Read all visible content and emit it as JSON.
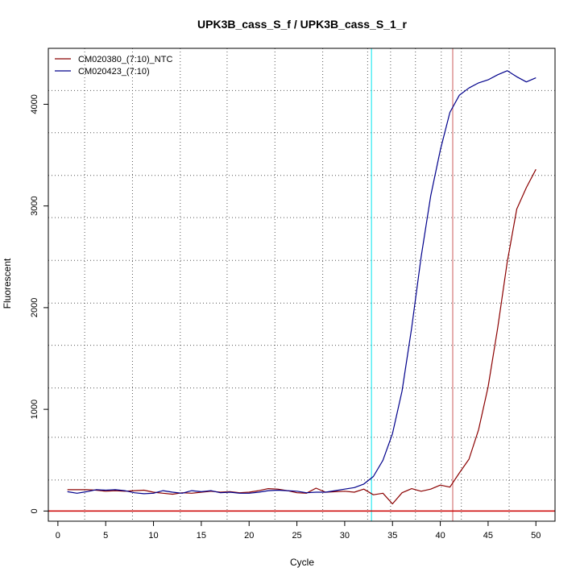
{
  "chart_data": {
    "type": "line",
    "title": "UPK3B_cass_S_f / UPK3B_cass_S_1_r",
    "xlabel": "Cycle",
    "ylabel": "Fluorescent",
    "xlim": [
      -1,
      52
    ],
    "ylim": [
      -100,
      4550
    ],
    "x_ticks": [
      0,
      5,
      10,
      15,
      20,
      25,
      30,
      35,
      40,
      45,
      50
    ],
    "y_ticks": [
      0,
      1000,
      2000,
      3000,
      4000
    ],
    "grid": true,
    "grid_style": "dotted",
    "x_grid": [
      2.8,
      7.8,
      12.8,
      17.7,
      22.7,
      27.7,
      32.4,
      34.8,
      37.4,
      40.1,
      42.2,
      47.2
    ],
    "y_grid": [
      -100,
      305,
      725,
      1210,
      1630,
      2045,
      2465,
      2885,
      3300,
      3720,
      4135,
      4550
    ],
    "threshold_y": 0,
    "threshold_color": "#cc0000",
    "cycle_markers": [
      {
        "x": 32.8,
        "color": "#00e5ee"
      },
      {
        "x": 41.3,
        "color": "#cd5c5c"
      }
    ],
    "legend_position": "top-left",
    "series": [
      {
        "name": "CM020380_(7:10)_NTC",
        "color": "#8b0000",
        "x": [
          1,
          2,
          3,
          4,
          5,
          6,
          7,
          8,
          9,
          10,
          11,
          12,
          13,
          14,
          15,
          16,
          17,
          18,
          19,
          20,
          21,
          22,
          23,
          24,
          25,
          26,
          27,
          28,
          29,
          30,
          31,
          32,
          33,
          34,
          35,
          36,
          37,
          38,
          39,
          40,
          41,
          42,
          43,
          44,
          45,
          46,
          47,
          48,
          49,
          50
        ],
        "y": [
          210,
          210,
          210,
          205,
          195,
          200,
          195,
          200,
          205,
          185,
          175,
          165,
          180,
          175,
          185,
          195,
          185,
          190,
          180,
          185,
          200,
          220,
          215,
          200,
          180,
          175,
          225,
          185,
          190,
          195,
          185,
          215,
          160,
          175,
          70,
          180,
          220,
          195,
          215,
          255,
          235,
          375,
          510,
          800,
          1220,
          1800,
          2450,
          2970,
          3180,
          3360
        ]
      },
      {
        "name": "CM020423_(7:10)",
        "color": "#00008b",
        "x": [
          1,
          2,
          3,
          4,
          5,
          6,
          7,
          8,
          9,
          10,
          11,
          12,
          13,
          14,
          15,
          16,
          17,
          18,
          19,
          20,
          21,
          22,
          23,
          24,
          25,
          26,
          27,
          28,
          29,
          30,
          31,
          32,
          33,
          34,
          35,
          36,
          37,
          38,
          39,
          40,
          41,
          42,
          43,
          44,
          45,
          46,
          47,
          48,
          49,
          50
        ],
        "y": [
          190,
          175,
          190,
          210,
          205,
          210,
          200,
          180,
          170,
          175,
          200,
          185,
          175,
          200,
          190,
          200,
          180,
          185,
          175,
          175,
          185,
          200,
          205,
          200,
          195,
          180,
          185,
          185,
          200,
          215,
          230,
          265,
          340,
          500,
          760,
          1180,
          1800,
          2500,
          3100,
          3550,
          3920,
          4090,
          4160,
          4210,
          4240,
          4290,
          4330,
          4270,
          4220,
          4260
        ]
      }
    ]
  }
}
